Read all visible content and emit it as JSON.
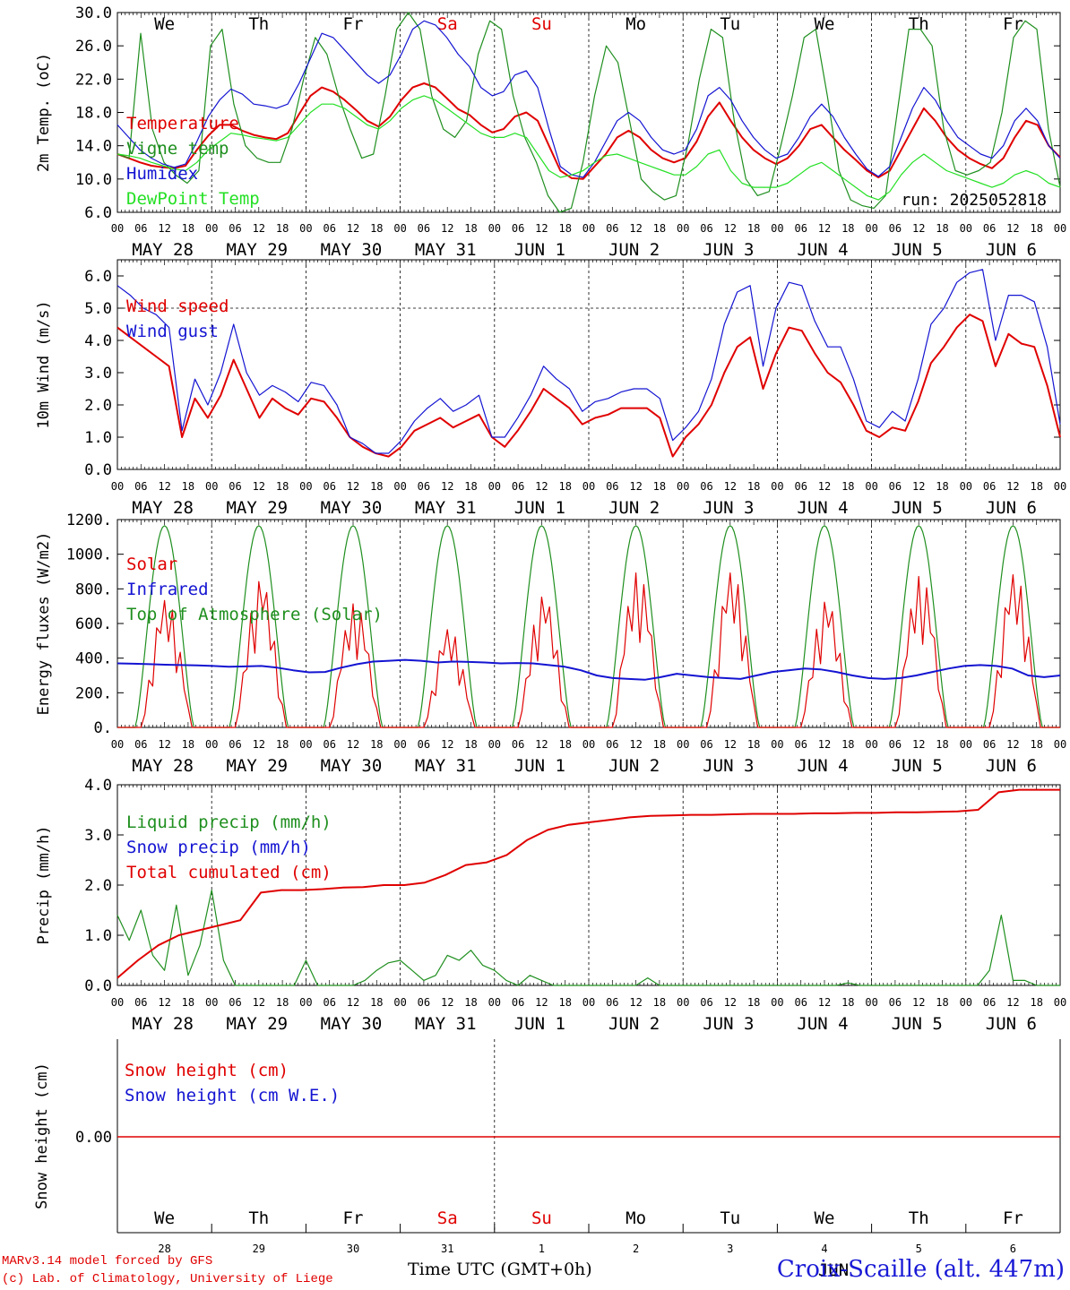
{
  "days": [
    "MAY 28",
    "MAY 29",
    "MAY 30",
    "MAY 31",
    "JUN  1",
    "JUN  2",
    "JUN  3",
    "JUN  4",
    "JUN  5",
    "JUN  6"
  ],
  "weekdays": [
    "We",
    "Th",
    "Fr",
    "Sa",
    "Su",
    "Mo",
    "Tu",
    "We",
    "Th",
    "Fr"
  ],
  "weekday_colors": [
    "#000000",
    "#000000",
    "#000000",
    "#e00000",
    "#e00000",
    "#000000",
    "#000000",
    "#000000",
    "#000000",
    "#000000"
  ],
  "hour_ticks": [
    "00",
    "06",
    "12",
    "18"
  ],
  "day_numbers": [
    "28",
    "29",
    "30",
    "31",
    "1",
    "2",
    "3",
    "4",
    "5",
    "6"
  ],
  "month_label": "JUN",
  "run_label": "run: 2025052818",
  "footer": {
    "model": "MARv3.14 model forced by GFS",
    "copyright": "(c) Lab. of Climatology, University of Liege",
    "time_axis": "Time UTC (GMT+0h)",
    "station": "Croix-Scaille (alt. 447m)"
  },
  "chart_data": [
    {
      "type": "line",
      "ylabel": "2m Temp. (oC)",
      "ylim": [
        6,
        30
      ],
      "yticks": [
        "30.0",
        "26.0",
        "22.0",
        "18.0",
        "14.0",
        "10.0",
        "6.0"
      ],
      "x": "hours since May 28 00 UTC (3-hourly)",
      "series": [
        {
          "name": "Temperature",
          "color": "#e00000",
          "values": [
            13,
            12.5,
            12,
            11.6,
            11.4,
            11.3,
            11.6,
            13.5,
            15.2,
            16.5,
            16.5,
            15.8,
            15.3,
            15,
            14.8,
            15.5,
            17.8,
            20,
            21,
            20.5,
            19.5,
            18.3,
            17,
            16.3,
            17.5,
            19.5,
            21,
            21.5,
            21,
            19.7,
            18.4,
            17.7,
            16.5,
            15.6,
            16,
            17.5,
            18,
            17,
            14,
            11,
            10.1,
            10,
            11.5,
            13,
            15,
            15.8,
            15,
            13.5,
            12.5,
            12,
            12.5,
            14.5,
            17.5,
            19.2,
            17,
            15,
            13.5,
            12.5,
            11.8,
            12.5,
            14,
            16,
            16.5,
            15,
            13.5,
            12.3,
            11,
            10.2,
            11,
            13.5,
            16,
            18.5,
            17,
            15,
            13.5,
            12.5,
            11.8,
            11.3,
            12.5,
            15,
            17,
            16.5,
            14,
            12.6
          ]
        },
        {
          "name": "Vigne temp",
          "color": "#1f8f1f",
          "values": [
            13,
            12.5,
            27.5,
            16,
            12,
            10.5,
            9.5,
            11,
            26,
            28,
            19,
            14,
            12.5,
            12,
            12,
            16,
            22,
            27,
            25,
            20,
            16,
            12.5,
            13,
            20,
            28,
            30,
            28,
            20,
            16,
            15,
            17,
            25,
            29,
            28,
            20,
            15,
            12,
            8,
            6,
            6.5,
            12,
            20,
            26,
            24,
            17,
            10,
            8.5,
            7.5,
            8,
            14,
            22,
            28,
            27,
            17,
            10,
            8,
            8.5,
            14,
            20,
            27,
            28,
            20,
            11,
            7.5,
            6.8,
            6.5,
            8,
            18,
            28,
            28,
            26,
            16,
            11,
            10.5,
            11,
            12,
            18,
            27,
            29,
            28,
            16,
            9
          ]
        },
        {
          "name": "Humidex",
          "color": "#1414d2",
          "values": [
            16.5,
            15,
            13.5,
            12.5,
            11.8,
            11.4,
            11.8,
            14.5,
            17.5,
            19.5,
            20.8,
            20.2,
            19,
            18.8,
            18.5,
            19,
            21.5,
            24.5,
            27.5,
            27,
            25.5,
            24,
            22.5,
            21.5,
            22.5,
            25,
            28,
            29,
            28.5,
            27,
            25,
            23.5,
            21,
            20,
            20.5,
            22.5,
            23,
            21,
            16,
            11.5,
            10.5,
            10.2,
            12,
            14.5,
            17,
            18,
            17,
            15,
            13.5,
            13,
            13.5,
            16,
            20,
            21,
            19.5,
            17,
            15,
            13.5,
            12.5,
            13,
            15,
            17.5,
            19,
            17.5,
            15,
            13,
            11.2,
            10.3,
            11.5,
            15,
            18.5,
            21,
            19.5,
            17,
            15,
            14,
            13,
            12.5,
            14,
            17,
            18.5,
            17,
            14,
            12.5
          ]
        },
        {
          "name": "DewPoint Temp",
          "color": "#24e024",
          "values": [
            13,
            12.8,
            12.5,
            12,
            11.6,
            11.2,
            11,
            12,
            13.5,
            14.5,
            15.5,
            15.3,
            15,
            14.8,
            14.6,
            15,
            16.5,
            18,
            19,
            19,
            18.5,
            17.5,
            16.5,
            16,
            17,
            18.5,
            19.5,
            20,
            19.5,
            18.5,
            17.5,
            16.5,
            15.5,
            15,
            15,
            15.5,
            15,
            13,
            11,
            10.2,
            10.5,
            11,
            12,
            12.8,
            13,
            12.5,
            12,
            11.5,
            11,
            10.5,
            10.5,
            11.5,
            13,
            13.5,
            11,
            9.5,
            9,
            9,
            9,
            9.5,
            10.5,
            11.5,
            12,
            11,
            10,
            9,
            8,
            7.5,
            8.5,
            10.5,
            12,
            13,
            12,
            11,
            10.5,
            10,
            9.5,
            9,
            9.5,
            10.5,
            11,
            10.5,
            9.5,
            9
          ]
        }
      ]
    },
    {
      "type": "line",
      "ylabel": "10m Wind (m/s)",
      "ylim": [
        0,
        6.5
      ],
      "yticks": [
        "6.0",
        "5.0",
        "4.0",
        "3.0",
        "2.0",
        "1.0",
        "0.0"
      ],
      "reference_line": 5.0,
      "series": [
        {
          "name": "Wind speed",
          "color": "#e00000",
          "values": [
            4.4,
            4.1,
            3.8,
            3.5,
            3.2,
            1.0,
            2.2,
            1.6,
            2.3,
            3.4,
            2.5,
            1.6,
            2.2,
            1.9,
            1.7,
            2.2,
            2.1,
            1.6,
            1.0,
            0.7,
            0.5,
            0.4,
            0.7,
            1.2,
            1.4,
            1.6,
            1.3,
            1.5,
            1.7,
            1.0,
            0.7,
            1.2,
            1.8,
            2.5,
            2.2,
            1.9,
            1.4,
            1.6,
            1.7,
            1.9,
            1.9,
            1.9,
            1.6,
            0.4,
            1.0,
            1.4,
            2.0,
            3.0,
            3.8,
            4.1,
            2.5,
            3.6,
            4.4,
            4.3,
            3.6,
            3.0,
            2.7,
            2.0,
            1.2,
            1.0,
            1.3,
            1.2,
            2.1,
            3.3,
            3.8,
            4.4,
            4.8,
            4.6,
            3.2,
            4.2,
            3.9,
            3.8,
            2.6,
            1.0
          ]
        },
        {
          "name": "Wind gust",
          "color": "#1414d2",
          "values": [
            5.7,
            5.4,
            5.0,
            4.8,
            4.4,
            1.2,
            2.8,
            2.0,
            3.0,
            4.5,
            3.0,
            2.3,
            2.6,
            2.4,
            2.1,
            2.7,
            2.6,
            2.0,
            1.0,
            0.8,
            0.5,
            0.5,
            0.9,
            1.5,
            1.9,
            2.2,
            1.8,
            2.0,
            2.3,
            1.0,
            1.0,
            1.6,
            2.3,
            3.2,
            2.8,
            2.5,
            1.8,
            2.1,
            2.2,
            2.4,
            2.5,
            2.5,
            2.2,
            0.9,
            1.3,
            1.8,
            2.8,
            4.5,
            5.5,
            5.7,
            3.2,
            5.0,
            5.8,
            5.7,
            4.6,
            3.8,
            3.8,
            2.8,
            1.5,
            1.3,
            1.8,
            1.5,
            2.8,
            4.5,
            5.0,
            5.8,
            6.1,
            6.2,
            4.0,
            5.4,
            5.4,
            5.2,
            3.8,
            1.4
          ]
        }
      ]
    },
    {
      "type": "line",
      "ylabel": "Energy fluxes (W/m2)",
      "ylim": [
        0,
        1200
      ],
      "yticks": [
        "1200.",
        "1000.",
        "800.",
        "600.",
        "400.",
        "200.",
        "0."
      ],
      "series": [
        {
          "name": "Solar",
          "color": "#e00000",
          "daily_peaks": [
            740,
            850,
            720,
            570,
            760,
            900,
            900,
            730,
            880,
            890
          ]
        },
        {
          "name": "Infrared",
          "color": "#1414d2",
          "values": [
            370,
            368,
            365,
            362,
            360,
            358,
            355,
            350,
            352,
            355,
            345,
            330,
            318,
            320,
            345,
            365,
            380,
            385,
            390,
            385,
            375,
            380,
            378,
            375,
            370,
            372,
            370,
            360,
            350,
            330,
            300,
            285,
            280,
            275,
            290,
            310,
            300,
            290,
            285,
            280,
            300,
            320,
            330,
            340,
            335,
            320,
            300,
            285,
            280,
            285,
            300,
            320,
            340,
            355,
            360,
            355,
            340,
            300,
            290,
            300
          ]
        },
        {
          "name": "Top of Atmosphere (Solar)",
          "color": "#1f8f1f",
          "daily_peaks": [
            1165,
            1165,
            1165,
            1165,
            1165,
            1165,
            1165,
            1165,
            1165,
            1165
          ]
        }
      ]
    },
    {
      "type": "line",
      "ylabel": "Precip (mm/h)",
      "ylim": [
        0,
        4.0
      ],
      "yticks": [
        "4.0",
        "3.0",
        "2.0",
        "1.0",
        "0.0"
      ],
      "series": [
        {
          "name": "Liquid precip (mm/h)",
          "color": "#1f8f1f",
          "values": [
            1.4,
            0.9,
            1.5,
            0.6,
            0.3,
            1.6,
            0.2,
            0.8,
            1.9,
            0.5,
            0,
            0,
            0,
            0,
            0,
            0,
            0.5,
            0,
            0,
            0,
            0,
            0.1,
            0.3,
            0.45,
            0.5,
            0.3,
            0.1,
            0.2,
            0.6,
            0.5,
            0.7,
            0.4,
            0.3,
            0.1,
            0,
            0.2,
            0.1,
            0,
            0,
            0,
            0,
            0,
            0,
            0,
            0,
            0.15,
            0,
            0,
            0,
            0,
            0,
            0,
            0,
            0,
            0,
            0,
            0,
            0,
            0,
            0,
            0,
            0,
            0.05,
            0,
            0,
            0,
            0,
            0,
            0,
            0,
            0,
            0,
            0,
            0,
            0.3,
            1.4,
            0.1,
            0.1,
            0,
            0,
            0
          ]
        },
        {
          "name": "Snow precip (mm/h)",
          "color": "#1414d2",
          "values": []
        },
        {
          "name": "Total cumulated (cm)",
          "color": "#e00000",
          "values": [
            0.15,
            0.5,
            0.8,
            1.0,
            1.1,
            1.2,
            1.3,
            1.85,
            1.9,
            1.9,
            1.92,
            1.95,
            1.96,
            2.0,
            2.0,
            2.05,
            2.2,
            2.4,
            2.45,
            2.6,
            2.9,
            3.1,
            3.2,
            3.25,
            3.3,
            3.35,
            3.38,
            3.39,
            3.4,
            3.4,
            3.41,
            3.42,
            3.42,
            3.42,
            3.43,
            3.43,
            3.44,
            3.44,
            3.45,
            3.45,
            3.46,
            3.47,
            3.5,
            3.85,
            3.9,
            3.9,
            3.9
          ]
        }
      ]
    },
    {
      "type": "line",
      "ylabel": "Snow height (cm)",
      "yticks": [
        "0.00"
      ],
      "series": [
        {
          "name": "Snow height (cm)",
          "color": "#e00000",
          "values": [
            0,
            0
          ]
        },
        {
          "name": "Snow height (cm W.E.)",
          "color": "#1414d2",
          "values": []
        }
      ]
    }
  ]
}
